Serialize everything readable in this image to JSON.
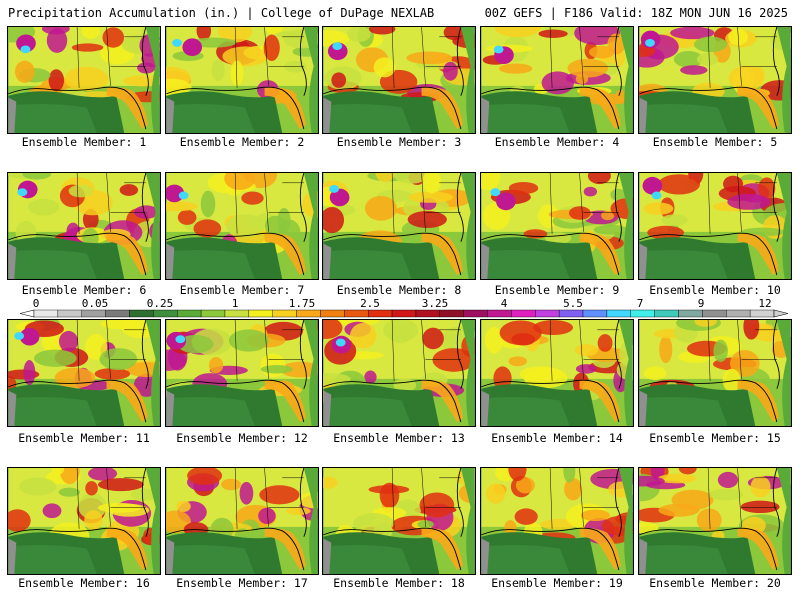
{
  "header": {
    "title": "Precipitation Accumulation (in.) | College of DuPage NEXLAB",
    "run_info": "00Z GEFS | F186 Valid: 18Z MON JUN 16 2025"
  },
  "colorbar": {
    "labels": [
      "0",
      "0.05",
      "0.25",
      "1",
      "1.75",
      "2.5",
      "3.25",
      "4",
      "5.5",
      "7",
      "9",
      "12"
    ],
    "colors": [
      "#e8e8e8",
      "#c8c8c8",
      "#a0a0a0",
      "#7a7a7a",
      "#2f6f2f",
      "#3f8f3f",
      "#5aaa3a",
      "#8cc83c",
      "#c8e040",
      "#f4f020",
      "#f8d020",
      "#f8a818",
      "#f08010",
      "#e85810",
      "#e03010",
      "#d01818",
      "#b01020",
      "#901028",
      "#a01060",
      "#c01890",
      "#e020c0",
      "#c040e0",
      "#8060f0",
      "#6090ff",
      "#40d8ff",
      "#40f0e8",
      "#40c8b8",
      "#80a8a0",
      "#909090",
      "#b0b0b0",
      "#d0d0d0"
    ]
  },
  "members": [
    {
      "label": "Ensemble Member: 1"
    },
    {
      "label": "Ensemble Member: 2"
    },
    {
      "label": "Ensemble Member: 3"
    },
    {
      "label": "Ensemble Member: 4"
    },
    {
      "label": "Ensemble Member: 5"
    },
    {
      "label": "Ensemble Member: 6"
    },
    {
      "label": "Ensemble Member: 7"
    },
    {
      "label": "Ensemble Member: 8"
    },
    {
      "label": "Ensemble Member: 9"
    },
    {
      "label": "Ensemble Member: 10"
    },
    {
      "label": "Ensemble Member: 11"
    },
    {
      "label": "Ensemble Member: 12"
    },
    {
      "label": "Ensemble Member: 13"
    },
    {
      "label": "Ensemble Member: 14"
    },
    {
      "label": "Ensemble Member: 15"
    },
    {
      "label": "Ensemble Member: 16"
    },
    {
      "label": "Ensemble Member: 17"
    },
    {
      "label": "Ensemble Member: 18"
    },
    {
      "label": "Ensemble Member: 19"
    },
    {
      "label": "Ensemble Member: 20"
    }
  ]
}
